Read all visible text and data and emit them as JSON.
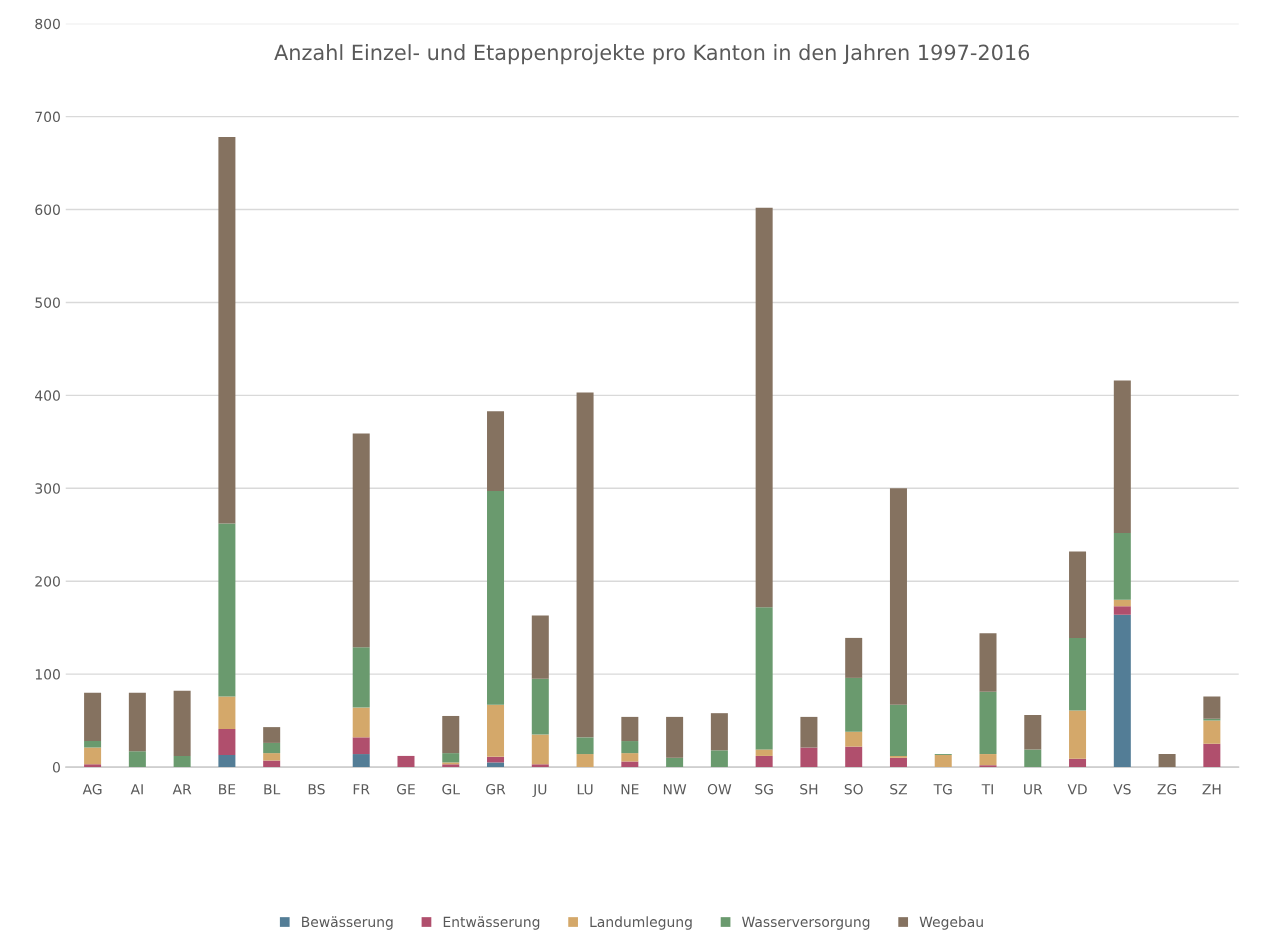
{
  "chart_data": {
    "type": "bar",
    "stacked": true,
    "title": "Anzahl Einzel- und Etappenprojekte pro Kanton in den Jahren 1997-2016",
    "categories": [
      "AG",
      "AI",
      "AR",
      "BE",
      "BL",
      "BS",
      "FR",
      "GE",
      "GL",
      "GR",
      "JU",
      "LU",
      "NE",
      "NW",
      "OW",
      "SG",
      "SH",
      "SO",
      "SZ",
      "TG",
      "TI",
      "UR",
      "VD",
      "VS",
      "ZG",
      "ZH"
    ],
    "series": [
      {
        "name": "Bewässerung",
        "color": "#537d96",
        "values": [
          0,
          0,
          0,
          13,
          0,
          0,
          14,
          0,
          0,
          5,
          0,
          0,
          0,
          0,
          0,
          0,
          0,
          0,
          0,
          0,
          0,
          0,
          0,
          164,
          0,
          0
        ]
      },
      {
        "name": "Entwässerung",
        "color": "#b04f6d",
        "values": [
          3,
          0,
          0,
          28,
          7,
          0,
          18,
          12,
          3,
          6,
          3,
          0,
          6,
          0,
          0,
          12,
          21,
          22,
          10,
          0,
          2,
          0,
          9,
          9,
          0,
          25
        ]
      },
      {
        "name": "Landumlegung",
        "color": "#d4a86a",
        "values": [
          18,
          0,
          0,
          35,
          8,
          0,
          32,
          0,
          2,
          56,
          32,
          14,
          9,
          0,
          0,
          7,
          0,
          16,
          2,
          13,
          12,
          0,
          52,
          7,
          0,
          25
        ]
      },
      {
        "name": "Wasserversorgung",
        "color": "#6a9a6e",
        "values": [
          7,
          17,
          12,
          186,
          11,
          0,
          65,
          0,
          10,
          230,
          60,
          18,
          13,
          10,
          18,
          153,
          0,
          58,
          55,
          1,
          67,
          19,
          78,
          72,
          0,
          2
        ]
      },
      {
        "name": "Wegebau",
        "color": "#857260",
        "values": [
          52,
          63,
          70,
          416,
          17,
          0,
          230,
          0,
          40,
          86,
          68,
          371,
          26,
          44,
          40,
          430,
          33,
          43,
          233,
          0,
          63,
          37,
          93,
          164,
          14,
          24
        ]
      }
    ],
    "ylim": [
      0,
      800
    ],
    "yticks": [
      0,
      100,
      200,
      300,
      400,
      500,
      600,
      700,
      800
    ],
    "grid": "y",
    "legend": "bottom"
  }
}
